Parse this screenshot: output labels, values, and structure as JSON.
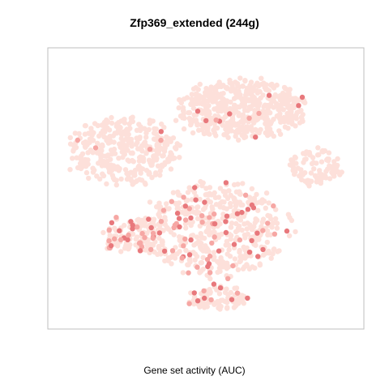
{
  "chart_data": {
    "type": "scatter",
    "title": "Zfp369_extended (244g)",
    "xlabel": "Gene set activity (AUC)",
    "ylabel": "",
    "axes_visible": false,
    "grid": false,
    "legend": "none",
    "colors": {
      "low": "#fde0da",
      "mid": "#f6a7a4",
      "high": "#e8787c",
      "frame": "#bfbfbf"
    },
    "clusters": [
      {
        "name": "top",
        "cx": 0.62,
        "cy": 0.8,
        "rx": 0.22,
        "ry": 0.11,
        "n": 520,
        "hi_frac": 0.01
      },
      {
        "name": "left",
        "cx": 0.22,
        "cy": 0.64,
        "rx": 0.18,
        "ry": 0.13,
        "n": 360,
        "hi_frac": 0.02
      },
      {
        "name": "right",
        "cx": 0.87,
        "cy": 0.58,
        "rx": 0.09,
        "ry": 0.07,
        "n": 90,
        "hi_frac": 0.0
      },
      {
        "name": "center",
        "cx": 0.53,
        "cy": 0.34,
        "rx": 0.25,
        "ry": 0.17,
        "n": 520,
        "hi_frac": 0.12
      },
      {
        "name": "lower-left",
        "cx": 0.24,
        "cy": 0.32,
        "rx": 0.1,
        "ry": 0.07,
        "n": 100,
        "hi_frac": 0.3
      },
      {
        "name": "bottom",
        "cx": 0.54,
        "cy": 0.08,
        "rx": 0.1,
        "ry": 0.05,
        "n": 90,
        "hi_frac": 0.1
      }
    ]
  }
}
